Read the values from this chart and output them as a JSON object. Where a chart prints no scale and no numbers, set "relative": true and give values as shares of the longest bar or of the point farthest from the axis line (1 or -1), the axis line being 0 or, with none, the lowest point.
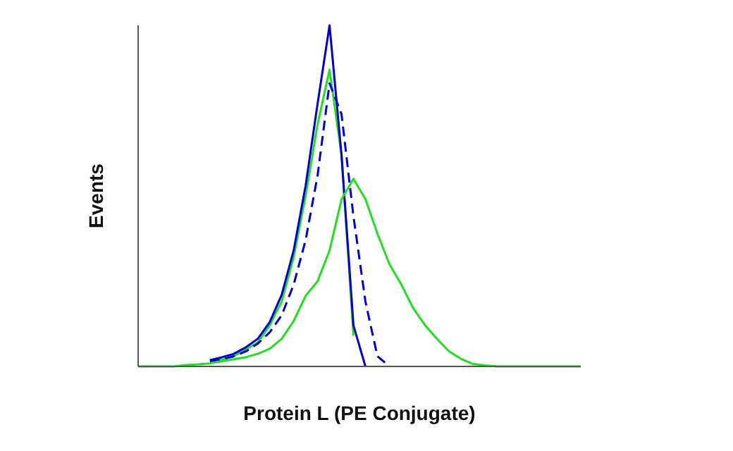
{
  "chart_data": {
    "type": "line",
    "xlabel": "Protein L (PE Conjugate)",
    "ylabel": "Events",
    "relative": true,
    "grid": false,
    "legend": false,
    "marker": "none",
    "categories": [
      null,
      null,
      null,
      null,
      null,
      null,
      null,
      null,
      null,
      null,
      null,
      null,
      null,
      null,
      null,
      null,
      null,
      null,
      null,
      null,
      null,
      null,
      null,
      null,
      null,
      null,
      null,
      null,
      null,
      null,
      null,
      null,
      null,
      null,
      null,
      null,
      null,
      null
    ],
    "series": [
      {
        "color": "#22dd22",
        "line_style": "solid",
        "values": [
          null,
          null,
          null,
          null,
          null,
          null,
          0.02,
          0.02,
          0.03,
          0.05,
          0.07,
          0.12,
          0.19,
          0.32,
          0.5,
          0.71,
          0.87,
          0.62,
          0.09,
          null,
          null,
          null,
          null,
          null,
          null,
          null,
          null,
          null,
          null,
          null,
          null,
          null,
          null,
          null,
          null,
          null,
          null,
          null
        ]
      },
      {
        "color": "#0000cc",
        "line_style": "dashed",
        "values": [
          null,
          null,
          null,
          null,
          null,
          null,
          0.015,
          0.021,
          0.03,
          0.044,
          0.067,
          0.1,
          0.15,
          0.24,
          0.37,
          0.56,
          0.83,
          0.74,
          0.44,
          0.19,
          0.03,
          0,
          null,
          null,
          null,
          null,
          null,
          null,
          null,
          null,
          null,
          null,
          null,
          null,
          null,
          null,
          null,
          null
        ]
      },
      {
        "color": "#0000cc",
        "line_style": "solid",
        "values": [
          null,
          null,
          null,
          null,
          null,
          null,
          0.018,
          0.027,
          0.037,
          0.056,
          0.081,
          0.13,
          0.21,
          0.34,
          0.53,
          0.77,
          1,
          0.62,
          0.12,
          0,
          null,
          null,
          null,
          null,
          null,
          null,
          null,
          null,
          null,
          null,
          null,
          null,
          null,
          null,
          null,
          null,
          null,
          null
        ]
      },
      {
        "color": "#22dd22",
        "line_style": "solid",
        "values": [
          0,
          0,
          0,
          0,
          0.004,
          0.006,
          0.009,
          0.015,
          0.021,
          0.027,
          0.037,
          0.052,
          0.081,
          0.133,
          0.207,
          0.25,
          0.34,
          0.49,
          0.55,
          0.49,
          0.39,
          0.3,
          0.24,
          0.17,
          0.12,
          0.08,
          0.044,
          0.022,
          0.007,
          0.003,
          0,
          0,
          0,
          0,
          0,
          0,
          0,
          0
        ]
      }
    ]
  }
}
